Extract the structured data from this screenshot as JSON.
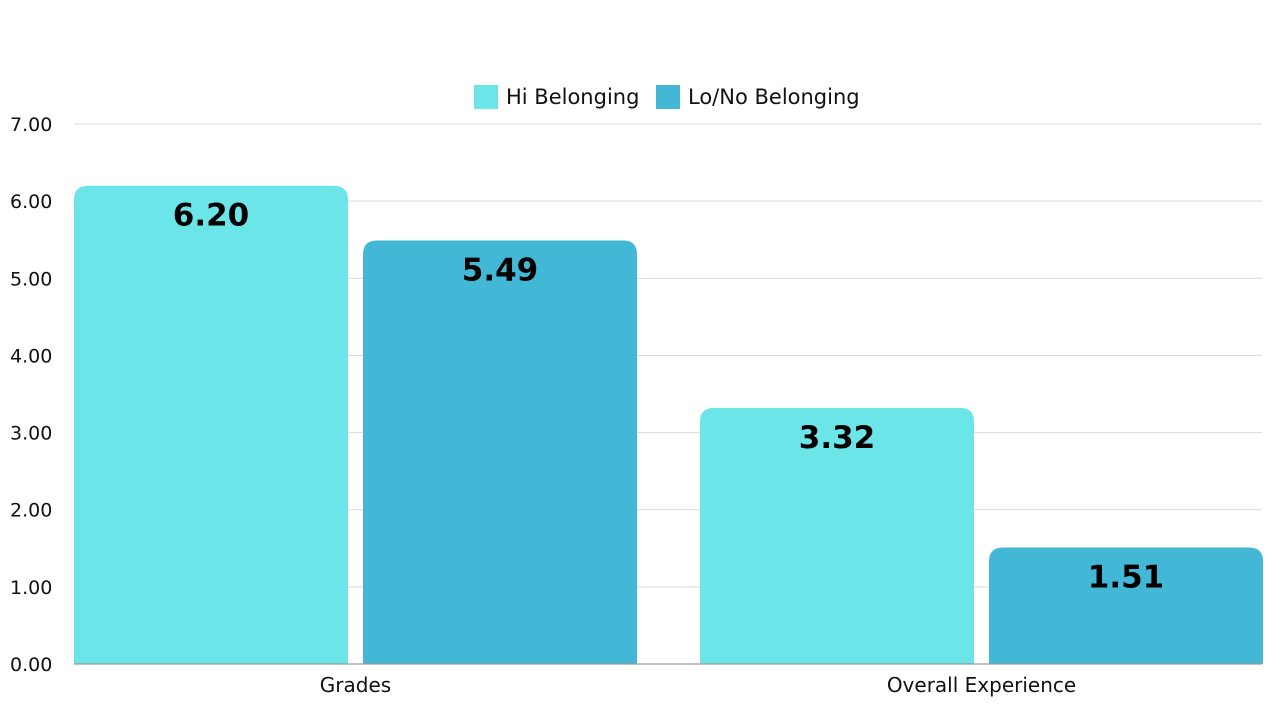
{
  "chart_data": {
    "type": "bar",
    "categories": [
      "Grades",
      "Overall Experience"
    ],
    "series": [
      {
        "name": "Hi Belonging",
        "values": [
          6.2,
          3.32
        ],
        "color": "#6ce5e8"
      },
      {
        "name": "Lo/No Belonging",
        "values": [
          5.49,
          1.51
        ],
        "color": "#42b7d6"
      }
    ],
    "data_labels": [
      [
        "6.20",
        "3.32"
      ],
      [
        "5.49",
        "1.51"
      ]
    ],
    "ylim": [
      0,
      7
    ],
    "yticks": [
      "0.00",
      "1.00",
      "2.00",
      "3.00",
      "4.00",
      "5.00",
      "6.00",
      "7.00"
    ],
    "grid": true,
    "legend_position": "top-center"
  }
}
